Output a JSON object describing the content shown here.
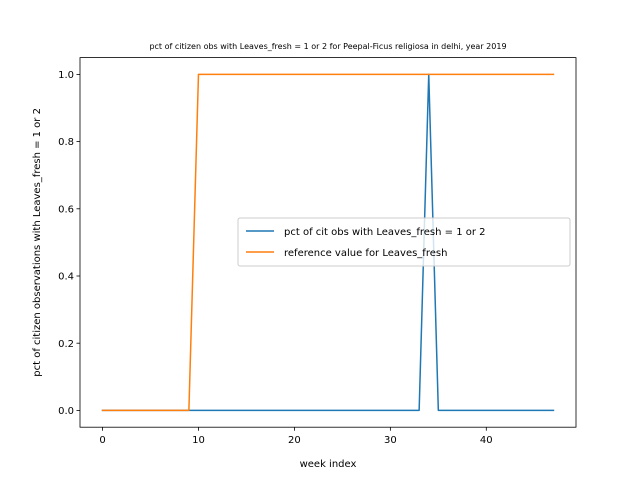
{
  "chart_data": {
    "type": "line",
    "title": "pct of citizen obs with Leaves_fresh = 1 or 2 for Peepal-Ficus religiosa in delhi, year 2019",
    "xlabel": "week index",
    "ylabel": "pct of citizen observations with Leaves_fresh = 1 or 2",
    "xlim": [
      -2.35,
      49.35
    ],
    "ylim": [
      -0.05,
      1.05
    ],
    "xticks": [
      0,
      10,
      20,
      30,
      40
    ],
    "yticks": [
      0.0,
      0.2,
      0.4,
      0.6,
      0.8,
      1.0
    ],
    "xtick_labels": [
      "0",
      "10",
      "20",
      "30",
      "40"
    ],
    "ytick_labels": [
      "0.0",
      "0.2",
      "0.4",
      "0.6",
      "0.8",
      "1.0"
    ],
    "grid": false,
    "legend_position": "center-right",
    "series": [
      {
        "name": "pct of cit obs with Leaves_fresh = 1 or 2",
        "color": "#1f77b4",
        "x": [
          0,
          1,
          2,
          3,
          4,
          5,
          6,
          7,
          8,
          9,
          10,
          11,
          12,
          13,
          14,
          15,
          16,
          17,
          18,
          19,
          20,
          21,
          22,
          23,
          24,
          25,
          26,
          27,
          28,
          29,
          30,
          31,
          32,
          33,
          34,
          35,
          36,
          37,
          38,
          39,
          40,
          41,
          42,
          43,
          44,
          45,
          46,
          47
        ],
        "y": [
          0,
          0,
          0,
          0,
          0,
          0,
          0,
          0,
          0,
          0,
          0,
          0,
          0,
          0,
          0,
          0,
          0,
          0,
          0,
          0,
          0,
          0,
          0,
          0,
          0,
          0,
          0,
          0,
          0,
          0,
          0,
          0,
          0,
          0,
          1,
          0,
          0,
          0,
          0,
          0,
          0,
          0,
          0,
          0,
          0,
          0,
          0,
          0
        ]
      },
      {
        "name": "reference value for Leaves_fresh",
        "color": "#ff7f0e",
        "x": [
          0,
          1,
          2,
          3,
          4,
          5,
          6,
          7,
          8,
          9,
          10,
          11,
          12,
          13,
          14,
          15,
          16,
          17,
          18,
          19,
          20,
          21,
          22,
          23,
          24,
          25,
          26,
          27,
          28,
          29,
          30,
          31,
          32,
          33,
          34,
          35,
          36,
          37,
          38,
          39,
          40,
          41,
          42,
          43,
          44,
          45,
          46,
          47
        ],
        "y": [
          0,
          0,
          0,
          0,
          0,
          0,
          0,
          0,
          0,
          0,
          1,
          1,
          1,
          1,
          1,
          1,
          1,
          1,
          1,
          1,
          1,
          1,
          1,
          1,
          1,
          1,
          1,
          1,
          1,
          1,
          1,
          1,
          1,
          1,
          1,
          1,
          1,
          1,
          1,
          1,
          1,
          1,
          1,
          1,
          1,
          1,
          1,
          1
        ]
      }
    ]
  }
}
